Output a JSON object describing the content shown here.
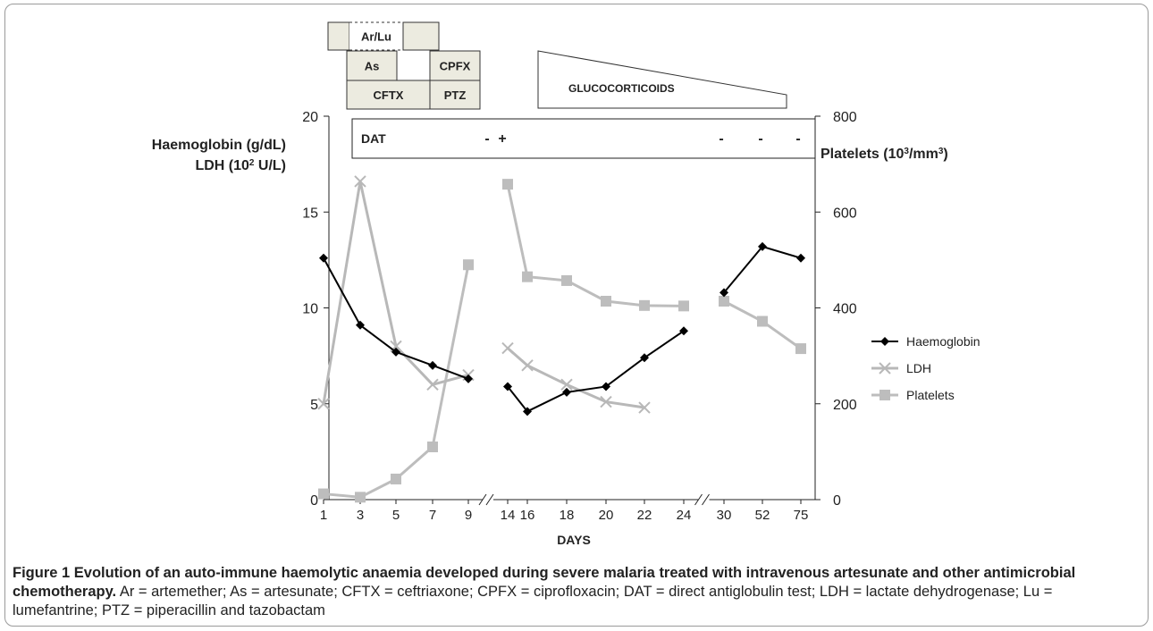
{
  "colors": {
    "haemoglobin": "#000000",
    "ldh": "#b8b8b8",
    "platelets": "#bdbdbd",
    "treatment_fill": "#ecebe0",
    "axis": "#222222"
  },
  "chart_data": {
    "type": "line",
    "title": "",
    "xlabel": "DAYS",
    "ylabel_left_1": "Haemoglobin (g/dL)",
    "ylabel_left_2": "LDH (10",
    "ylabel_left_2_sup": "2",
    "ylabel_left_2_end": " U/L)",
    "ylabel_right": "Platelets (10",
    "ylabel_right_sup": "3",
    "ylabel_right_end": "/mm",
    "ylabel_right_sup2": "3",
    "ylabel_right_close": ")",
    "x_categories": [
      "1",
      "3",
      "5",
      "7",
      "9",
      "14",
      "16",
      "18",
      "20",
      "22",
      "24",
      "30",
      "52",
      "75"
    ],
    "axis_breaks_after": [
      "9",
      "24"
    ],
    "ylim_left": [
      0,
      20
    ],
    "yticks_left": [
      0,
      5,
      10,
      15,
      20
    ],
    "ylim_right": [
      0,
      800
    ],
    "yticks_right": [
      0,
      200,
      400,
      600,
      800
    ],
    "grid": false,
    "legend_position": "right",
    "series": [
      {
        "name": "Haemoglobin",
        "axis": "left",
        "marker": "diamond",
        "segments": [
          {
            "x": [
              "1",
              "3",
              "5",
              "7",
              "9"
            ],
            "y": [
              12.6,
              9.1,
              7.7,
              7.0,
              6.3
            ]
          },
          {
            "x": [
              "14",
              "16",
              "18",
              "20",
              "22",
              "24"
            ],
            "y": [
              5.9,
              4.6,
              5.6,
              5.9,
              7.4,
              8.8
            ]
          },
          {
            "x": [
              "30",
              "52",
              "75"
            ],
            "y": [
              10.8,
              13.2,
              12.6
            ]
          }
        ]
      },
      {
        "name": "LDH",
        "axis": "left",
        "marker": "x",
        "segments": [
          {
            "x": [
              "1",
              "3",
              "5",
              "7",
              "9"
            ],
            "y": [
              5.0,
              16.6,
              8.0,
              6.0,
              6.5
            ]
          },
          {
            "x": [
              "14",
              "16",
              "18",
              "20",
              "22"
            ],
            "y": [
              7.9,
              7.0,
              6.0,
              5.1,
              4.8
            ]
          }
        ]
      },
      {
        "name": "Platelets",
        "axis": "right",
        "marker": "square",
        "segments": [
          {
            "x": [
              "1",
              "3",
              "5",
              "7",
              "9"
            ],
            "y": [
              12,
              5,
              43,
              110,
              490
            ]
          },
          {
            "x": [
              "14",
              "16",
              "18",
              "20",
              "22",
              "24"
            ],
            "y": [
              658,
              465,
              457,
              414,
              405,
              404
            ]
          },
          {
            "x": [
              "30",
              "52",
              "75"
            ],
            "y": [
              414,
              372,
              315
            ]
          }
        ]
      }
    ],
    "dat": {
      "label": "DAT",
      "results": [
        {
          "x": "9",
          "value": "-"
        },
        {
          "x": "14",
          "value": "+"
        },
        {
          "x": "30",
          "value": "-"
        },
        {
          "x": "52",
          "value": "-"
        },
        {
          "x": "75",
          "value": "-"
        }
      ]
    },
    "treatments": [
      {
        "label": "Ar/Lu",
        "dashed": true
      },
      {
        "label": "As"
      },
      {
        "label": "CPFX"
      },
      {
        "label": "CFTX"
      },
      {
        "label": "PTZ"
      },
      {
        "label": "GLUCOCORTICOIDS"
      }
    ]
  },
  "caption": {
    "bold": "Figure 1 Evolution of an auto-immune haemolytic anaemia developed during severe malaria treated with intravenous artesunate and other antimicrobial chemotherapy.",
    "text": " Ar = artemether; As = artesunate; CFTX = ceftriaxone; CPFX = ciprofloxacin; DAT = direct antiglobulin test; LDH = lactate dehydrogenase; Lu = lumefantrine; PTZ = piperacillin and tazobactam"
  }
}
